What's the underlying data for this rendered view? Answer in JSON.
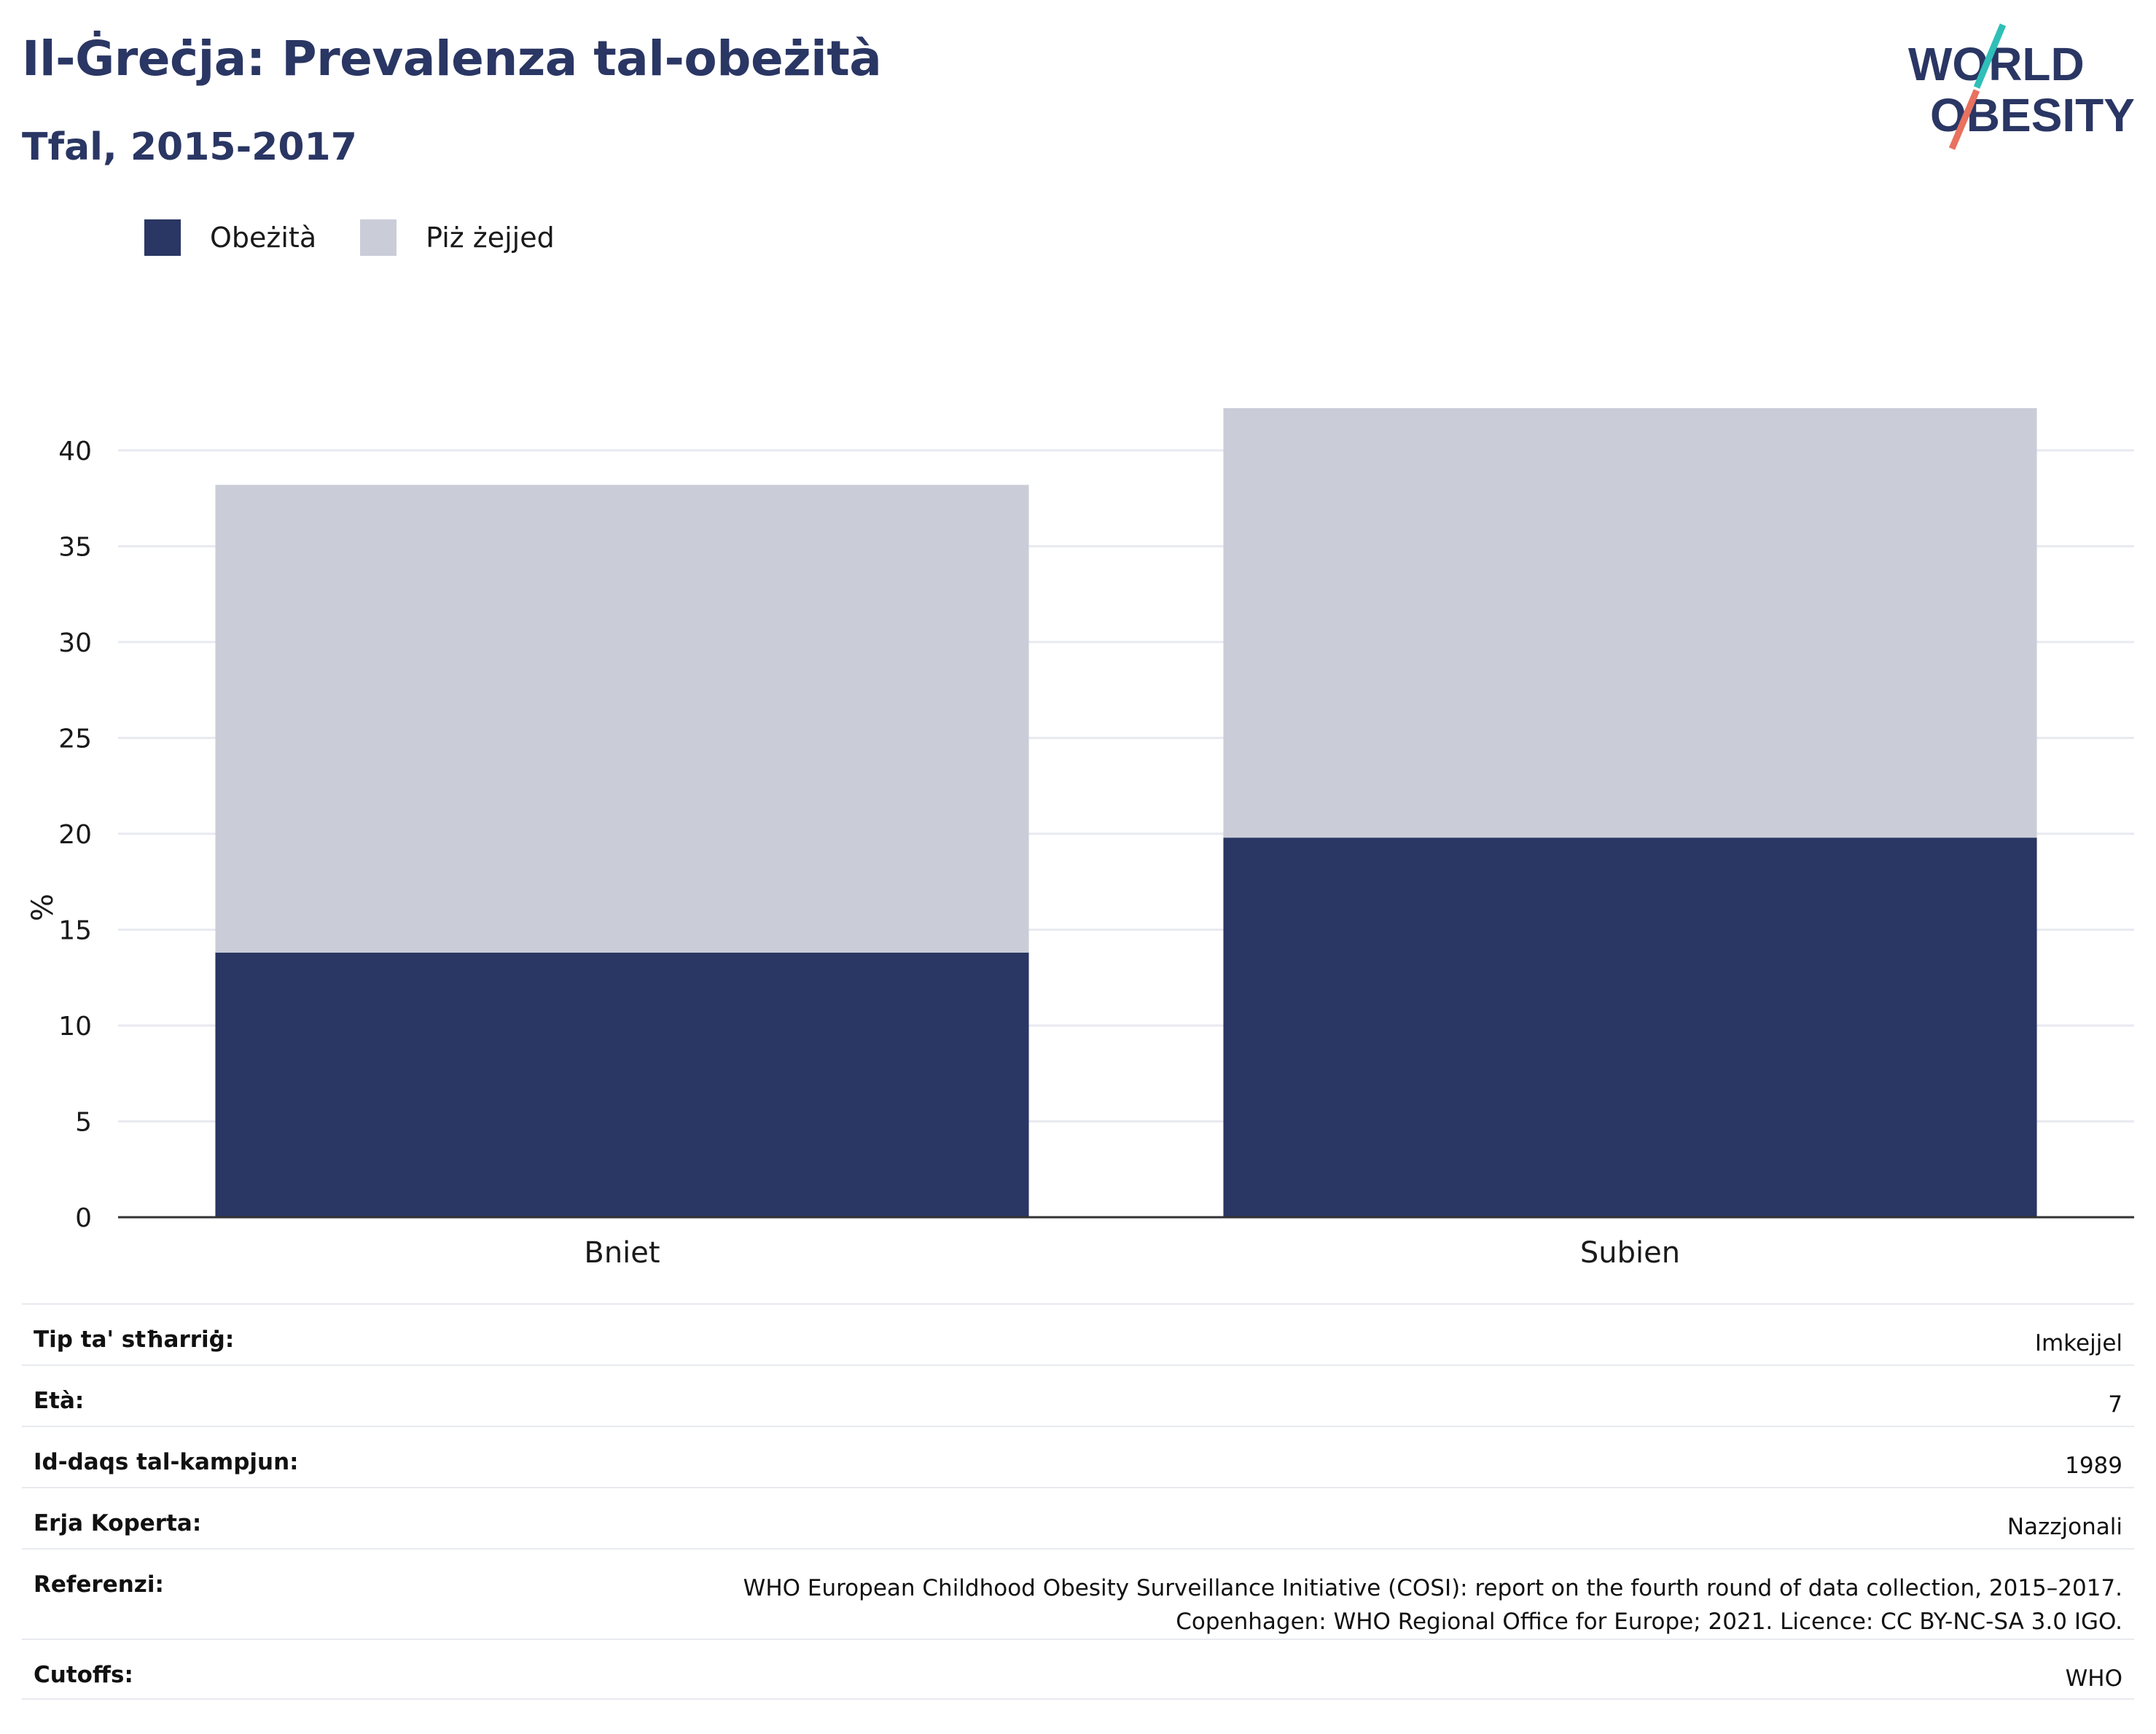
{
  "header": {
    "title": "Il-Ġreċja: Prevalenza tal-obeżità",
    "subtitle": "Tfal, 2015-2017"
  },
  "logo": {
    "line1": "WORLD",
    "line2": "OBESITY",
    "icon": "world-obesity-logo"
  },
  "colors": {
    "obesity": "#2a3663",
    "overweight": "#cacdd8",
    "brand_teal": "#2fbfb8",
    "brand_coral": "#e8715f",
    "grid": "#e8eaf0"
  },
  "legend": [
    {
      "label": "Obeżità",
      "color": "#2a3663"
    },
    {
      "label": "Piż żejjed",
      "color": "#cacdd8"
    }
  ],
  "chart_data": {
    "type": "bar",
    "stacked": true,
    "categories": [
      "Bniet",
      "Subien"
    ],
    "series": [
      {
        "name": "Obeżità",
        "values": [
          13.8,
          19.8
        ]
      },
      {
        "name": "Piż żejjed",
        "values": [
          24.4,
          22.4
        ]
      }
    ],
    "totals": [
      38.2,
      42.2
    ],
    "ylabel": "%",
    "ylim": [
      0,
      42.2
    ],
    "yticks": [
      0,
      5,
      10,
      15,
      20,
      25,
      30,
      35,
      40
    ],
    "grid": true,
    "legend_position": "top-left"
  },
  "info": [
    {
      "label": "Tip ta' stħarriġ:",
      "value": "Imkejjel"
    },
    {
      "label": "Età:",
      "value": "7"
    },
    {
      "label": "Id-daqs tal-kampjun:",
      "value": "1989"
    },
    {
      "label": "Erja Koperta:",
      "value": "Nazzjonali"
    },
    {
      "label": "Referenzi:",
      "value": "WHO European Childhood Obesity Surveillance Initiative (COSI): report on the fourth round of data collection, 2015–2017. Copenhagen: WHO Regional Office for Europe; 2021. Licence: CC BY-NC-SA 3.0 IGO."
    },
    {
      "label": "Cutoffs:",
      "value": "WHO"
    }
  ]
}
